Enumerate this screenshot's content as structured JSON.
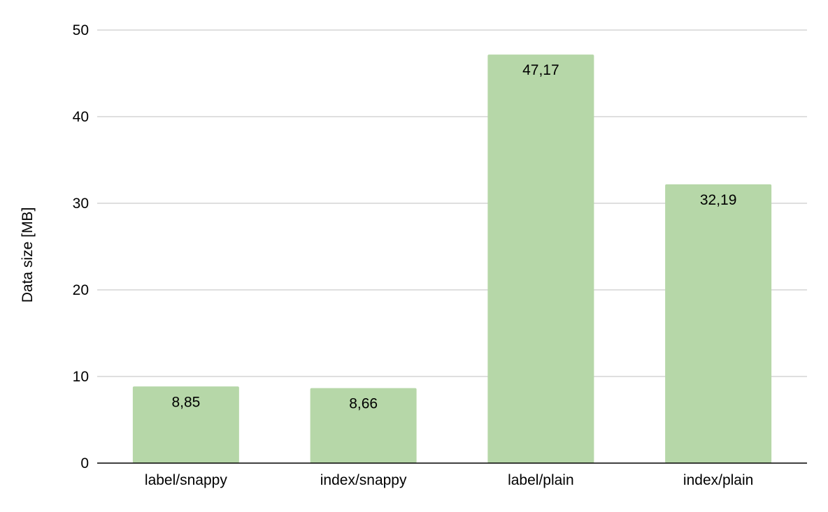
{
  "chart_data": {
    "type": "bar",
    "title": "",
    "xlabel": "",
    "ylabel": "Data size [MB]",
    "categories": [
      "label/snappy",
      "index/snappy",
      "label/plain",
      "index/plain"
    ],
    "values": [
      8.85,
      8.66,
      47.17,
      32.19
    ],
    "value_labels": [
      "8,85",
      "8,66",
      "47,17",
      "32,19"
    ],
    "ylim": [
      0,
      50
    ],
    "yticks": [
      0,
      10,
      20,
      30,
      40,
      50
    ],
    "grid": true,
    "legend": "none",
    "colors": {
      "bar": "#b6d7a8",
      "grid": "#cccccc",
      "axis": "#000000",
      "text": "#000000"
    }
  }
}
